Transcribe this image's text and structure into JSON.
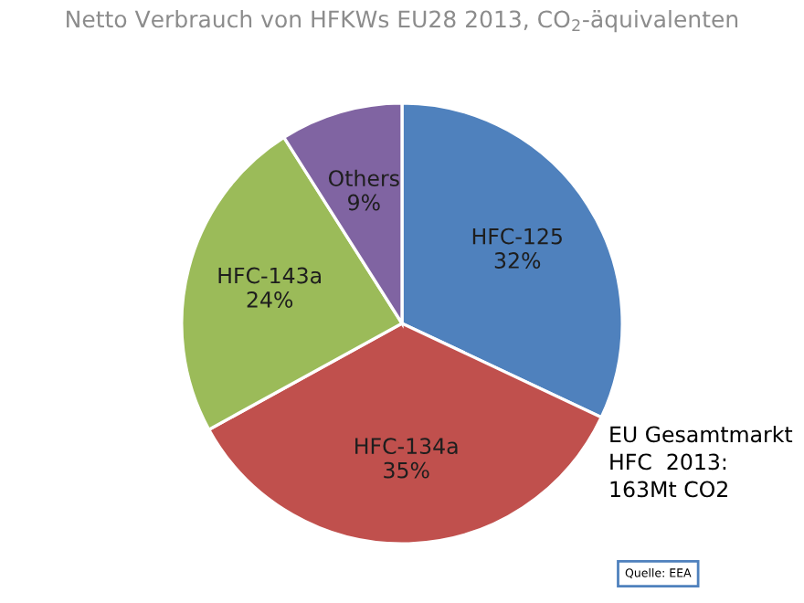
{
  "chart_data": {
    "type": "pie",
    "title": "Netto Verbrauch von HFKWs EU28 2013, CO$_{2}$-äquivalenten",
    "categories": [
      "HFC-125",
      "HFC-134a",
      "HFC-143a",
      "Others"
    ],
    "values": [
      32,
      35,
      24,
      9
    ],
    "value_labels": [
      "32%",
      "35%",
      "24%",
      "9%"
    ],
    "colors": [
      "#4f81bd",
      "#c0504d",
      "#9bbb59",
      "#8064a2"
    ],
    "legend": false,
    "annotations": [
      "EU Gesamtmarkt\nHFC  2013:\n163Mt CO2",
      "Quelle: EEA"
    ]
  }
}
